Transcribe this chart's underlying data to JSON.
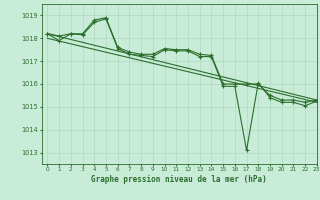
{
  "background_color": "#c8ecd8",
  "grid_color": "#b0d8c0",
  "line_color": "#2d6e2d",
  "text_color": "#2d6e2d",
  "xlabel": "Graphe pression niveau de la mer (hPa)",
  "ylim": [
    1012.5,
    1019.5
  ],
  "xlim": [
    -0.5,
    23
  ],
  "yticks": [
    1013,
    1014,
    1015,
    1016,
    1017,
    1018,
    1019
  ],
  "xticks": [
    0,
    1,
    2,
    3,
    4,
    5,
    6,
    7,
    8,
    9,
    10,
    11,
    12,
    13,
    14,
    15,
    16,
    17,
    18,
    19,
    20,
    21,
    22,
    23
  ],
  "series1": [
    1018.2,
    1018.1,
    1018.2,
    1018.2,
    1018.8,
    1018.9,
    1017.6,
    1017.4,
    1017.3,
    1017.3,
    1017.55,
    1017.5,
    1017.5,
    1017.3,
    1017.25,
    1016.0,
    1016.0,
    1016.0,
    1016.0,
    1015.5,
    1015.3,
    1015.3,
    1015.2,
    1015.3
  ],
  "series2": [
    1018.2,
    1017.9,
    1018.2,
    1018.15,
    1018.7,
    1018.85,
    1017.55,
    1017.3,
    1017.25,
    1017.2,
    1017.5,
    1017.45,
    1017.45,
    1017.2,
    1017.2,
    1015.9,
    1015.9,
    1013.1,
    1016.05,
    1015.4,
    1015.2,
    1015.2,
    1015.05,
    1015.25
  ],
  "trend1_x": [
    0,
    23
  ],
  "trend1_y": [
    1018.2,
    1015.3
  ],
  "trend2_x": [
    0,
    23
  ],
  "trend2_y": [
    1018.0,
    1015.2
  ]
}
